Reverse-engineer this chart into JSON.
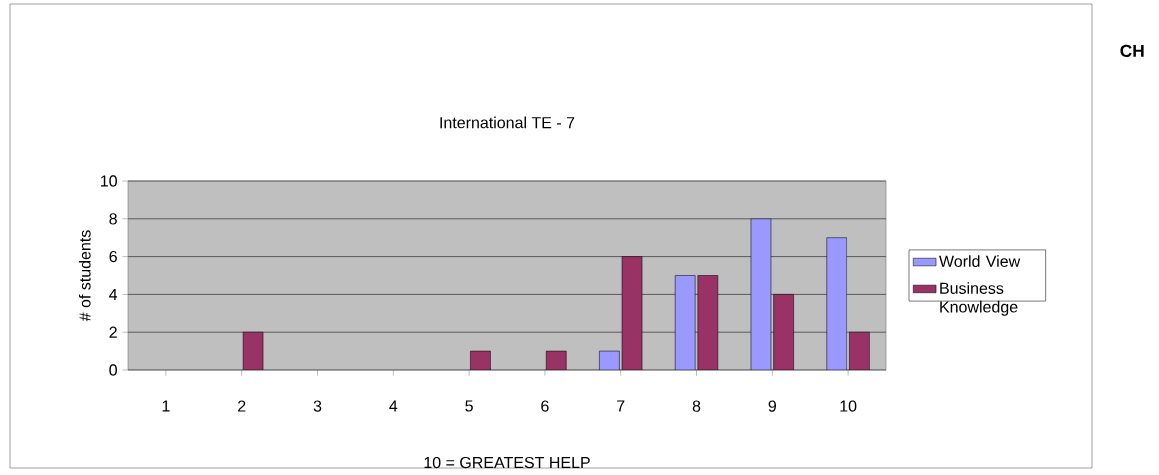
{
  "chart_data": {
    "type": "bar",
    "title": "International TE - 7",
    "xlabel": "10 = GREATEST HELP",
    "ylabel": "# of students",
    "categories": [
      "1",
      "2",
      "3",
      "4",
      "5",
      "6",
      "7",
      "8",
      "9",
      "10"
    ],
    "series": [
      {
        "name": "World View",
        "color": "#9999ff",
        "values": [
          null,
          null,
          null,
          null,
          null,
          null,
          1,
          5,
          8,
          7
        ]
      },
      {
        "name": "Business Knowledge",
        "color": "#993366",
        "values": [
          null,
          2,
          null,
          null,
          1,
          1,
          6,
          5,
          4,
          2
        ]
      }
    ],
    "ylim": [
      0,
      10
    ],
    "yticks": [
      0,
      2,
      4,
      6,
      8,
      10
    ],
    "grid": "y",
    "legend": "right",
    "annotations": [
      "CH"
    ]
  }
}
